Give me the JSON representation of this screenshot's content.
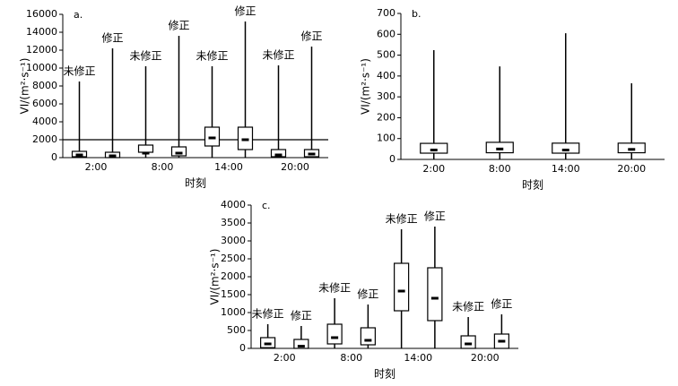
{
  "chart_data": [
    {
      "type": "box",
      "title": "a.",
      "xlabel": "时刻",
      "ylabel": "VI/(m²·s⁻¹)",
      "categories": [
        "2:00",
        "8:00",
        "14:00",
        "20:00"
      ],
      "ylim": [
        0,
        16000
      ],
      "yticks": [
        0,
        2000,
        4000,
        6000,
        8000,
        10000,
        12000,
        14000,
        16000
      ],
      "hline": 2000,
      "color": "#000000",
      "series": [
        {
          "name": "未修正",
          "min": [
            0,
            0,
            0,
            0
          ],
          "q1": [
            100,
            600,
            1300,
            100
          ],
          "median": [
            300,
            500,
            2200,
            300
          ],
          "q3": [
            700,
            1400,
            3400,
            900
          ],
          "max": [
            8500,
            10200,
            10200,
            10300
          ]
        },
        {
          "name": "修正",
          "min": [
            0,
            0,
            0,
            0
          ],
          "q1": [
            0,
            200,
            900,
            100
          ],
          "median": [
            200,
            500,
            2000,
            400
          ],
          "q3": [
            600,
            1200,
            3400,
            900
          ],
          "max": [
            12200,
            13600,
            15200,
            12400
          ]
        }
      ]
    },
    {
      "type": "box",
      "title": "b.",
      "xlabel": "时刻",
      "ylabel": "VI/(m²·s⁻¹)",
      "categories": [
        "2:00",
        "8:00",
        "14:00",
        "20:00"
      ],
      "ylim": [
        0,
        700
      ],
      "yticks": [
        0,
        100,
        200,
        300,
        400,
        500,
        600,
        700
      ],
      "color": "#000000",
      "series": [
        {
          "min": [
            0,
            0,
            0,
            0
          ],
          "q1": [
            30,
            32,
            30,
            32
          ],
          "median": [
            45,
            50,
            45,
            48
          ],
          "q3": [
            77,
            82,
            78,
            78
          ],
          "max": [
            524,
            446,
            605,
            365
          ]
        }
      ]
    },
    {
      "type": "box",
      "title": "c.",
      "xlabel": "时刻",
      "ylabel": "VI/(m²·s⁻¹)",
      "categories": [
        "2:00",
        "8:00",
        "14:00",
        "20:00"
      ],
      "ylim": [
        0,
        4000
      ],
      "yticks": [
        0,
        500,
        1000,
        1500,
        2000,
        2500,
        3000,
        3500,
        4000
      ],
      "color": "#000000",
      "series": [
        {
          "name": "未修正",
          "min": [
            0,
            0,
            0,
            0
          ],
          "q1": [
            20,
            125,
            1050,
            0
          ],
          "median": [
            125,
            300,
            1600,
            125
          ],
          "q3": [
            300,
            675,
            2375,
            350
          ],
          "max": [
            675,
            1400,
            3325,
            875
          ]
        },
        {
          "name": "修正",
          "min": [
            0,
            0,
            0,
            0
          ],
          "q1": [
            0,
            100,
            775,
            0
          ],
          "median": [
            60,
            225,
            1400,
            200
          ],
          "q3": [
            250,
            575,
            2250,
            400
          ],
          "max": [
            625,
            1225,
            3400,
            950
          ]
        }
      ]
    }
  ]
}
